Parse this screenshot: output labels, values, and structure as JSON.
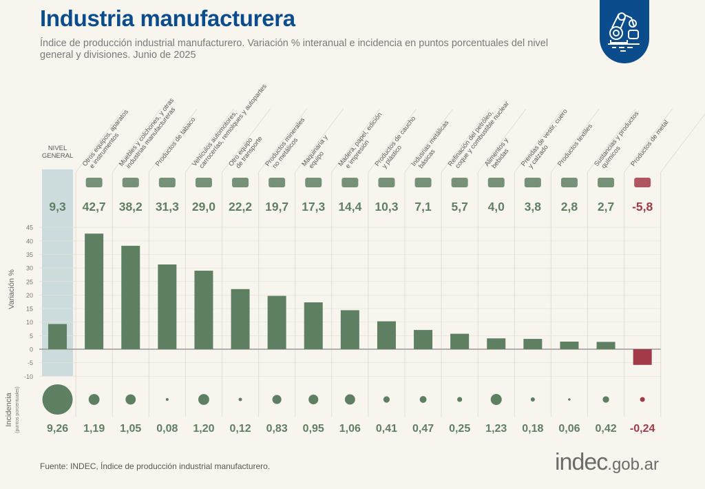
{
  "header": {
    "title": "Industria manufacturera",
    "subtitle": "Índice de producción industrial manufacturero. Variación % interanual e incidencia en puntos porcentuales del nivel general y divisiones. Junio de 2025",
    "badge_icon": "robot-arm-icon"
  },
  "footer": {
    "source": "Fuente: INDEC, Índice de producción industrial manufacturero.",
    "logo_main": "indec",
    "logo_suffix": ".gob.ar"
  },
  "colors": {
    "positive": "#5f7f63",
    "negative": "#a23a48",
    "general_band": "#ccdcdc",
    "title": "#0b4d8c",
    "axis": "#9a9a9a"
  },
  "chart_data": {
    "type": "bar",
    "title": "Industria manufacturera",
    "ylabel": "Variación %",
    "ylabel2": "Incidencia",
    "ylabel2_sub": "(puntos porcentuales)",
    "ylim": [
      -10,
      45
    ],
    "yticks": [
      45,
      40,
      35,
      30,
      25,
      20,
      15,
      10,
      5,
      0,
      -5,
      -10
    ],
    "grid": true,
    "categories": [
      "NIVEL GENERAL",
      "Otros equipos, aparatos e instrumentos",
      "Muebles y colchones, y otras industrias manufactureras",
      "Productos de tabaco",
      "Vehículos automotores, carrocerías, remolques y autopartes",
      "Otro equipo de transporte",
      "Productos minerales no metálicos",
      "Maquinaria y equipo",
      "Madera, papel, edición e impresión",
      "Productos de caucho y plástico",
      "Indusrias metálicas básicas",
      "Refinación del petróleo, coque y combustible nuclear",
      "Alimentos y bebidas",
      "Prendas de vestir, cuero y calzado",
      "Productos textiles",
      "Sustancias y productos químicos",
      "Productos de metal"
    ],
    "label_lines": [
      [
        "NIVEL",
        "GENERAL"
      ],
      [
        "Otros equipos, aparatos",
        "e instrumentos"
      ],
      [
        "Muebles y colchones, y otras",
        "industrias manufactureras"
      ],
      [
        "Productos de tabaco"
      ],
      [
        "Vehículos automotores,",
        "carrocerías, remolques y autopartes"
      ],
      [
        "Otro equipo",
        "de transporte"
      ],
      [
        "Productos minerales",
        "no metálicos"
      ],
      [
        "Maquinaria y",
        "equipo"
      ],
      [
        "Madera, papel, edición",
        "e impresión"
      ],
      [
        "Productos de caucho",
        "y plástico"
      ],
      [
        "Indusrias metálicas",
        "básicas"
      ],
      [
        "Refinación del petróleo,",
        "coque y combustible nuclear"
      ],
      [
        "Alimentos y",
        "bebidas"
      ],
      [
        "Prendas de vestir, cuero",
        "y calzado"
      ],
      [
        "Productos textiles"
      ],
      [
        "Sustancias y productos",
        "químicos"
      ],
      [
        "Productos de metal"
      ]
    ],
    "icons": [
      "",
      "laptop-icon",
      "cabinet-icon",
      "pipe-icon",
      "car-icon",
      "motorcycle-icon",
      "cement-mixer-icon",
      "tractor-icon",
      "paper-icon",
      "tire-icon",
      "metal-coil-icon",
      "refinery-icon",
      "bottle-bread-icon",
      "sweater-icon",
      "yarn-spool-icon",
      "flask-icon",
      "screw-icon"
    ],
    "series": [
      {
        "name": "Variación %",
        "values": [
          9.3,
          42.7,
          38.2,
          31.3,
          29.0,
          22.2,
          19.7,
          17.3,
          14.4,
          10.3,
          7.1,
          5.7,
          4.0,
          3.8,
          2.8,
          2.7,
          -5.8
        ],
        "labels": [
          "9,3",
          "42,7",
          "38,2",
          "31,3",
          "29,0",
          "22,2",
          "19,7",
          "17,3",
          "14,4",
          "10,3",
          "7,1",
          "5,7",
          "4,0",
          "3,8",
          "2,8",
          "2,7",
          "-5,8"
        ]
      },
      {
        "name": "Incidencia (puntos porcentuales)",
        "values": [
          9.26,
          1.19,
          1.05,
          0.08,
          1.2,
          0.12,
          0.83,
          0.95,
          1.06,
          0.41,
          0.47,
          0.25,
          1.23,
          0.18,
          0.06,
          0.42,
          -0.24
        ],
        "labels": [
          "9,26",
          "1,19",
          "1,05",
          "0,08",
          "1,20",
          "0,12",
          "0,83",
          "0,95",
          "1,06",
          "0,41",
          "0,47",
          "0,25",
          "1,23",
          "0,18",
          "0,06",
          "0,42",
          "-0,24"
        ]
      }
    ]
  }
}
